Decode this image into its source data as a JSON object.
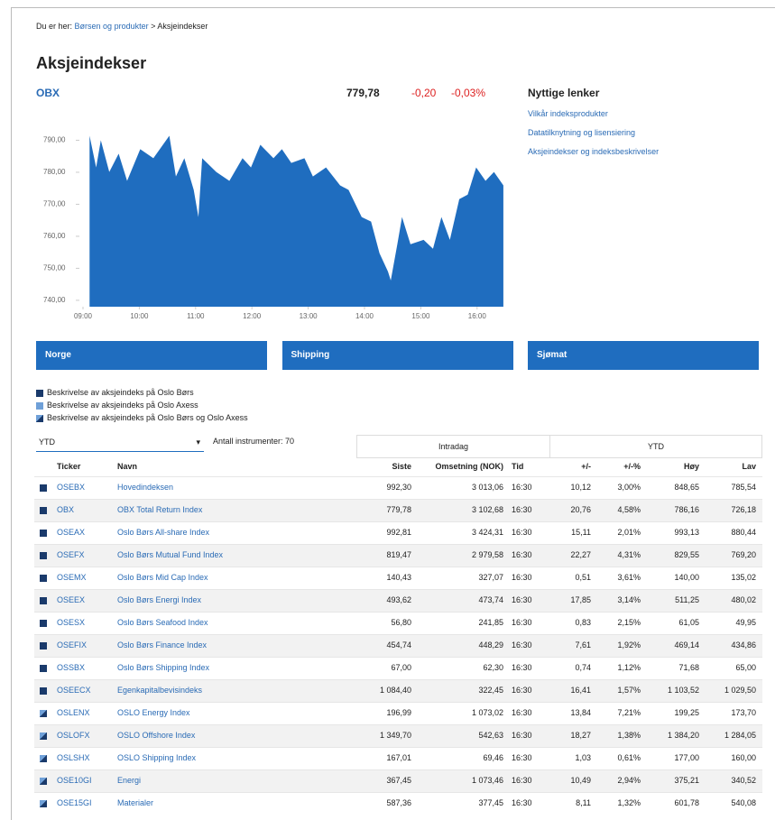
{
  "breadcrumb": {
    "label": "Du er her:",
    "items": [
      "Børsen og produkter",
      "Aksjeindekser"
    ]
  },
  "title": "Aksjeindekser",
  "quote": {
    "name": "OBX",
    "last": "779,78",
    "change": "-0,20",
    "change_pct": "-0,03%"
  },
  "chart_data": {
    "type": "area",
    "color": "#1f6dbf",
    "x": [
      "09:07",
      "09:14",
      "09:19",
      "09:28",
      "09:38",
      "09:47",
      "10:01",
      "10:15",
      "10:32",
      "10:39",
      "10:48",
      "10:58",
      "11:03",
      "11:07",
      "11:22",
      "11:36",
      "11:50",
      "11:59",
      "12:09",
      "12:23",
      "12:32",
      "12:42",
      "12:56",
      "13:05",
      "13:19",
      "13:34",
      "13:43",
      "13:57",
      "14:07",
      "14:16",
      "14:25",
      "14:28",
      "14:35",
      "14:40",
      "14:49",
      "15:03",
      "15:13",
      "15:22",
      "15:31",
      "15:41",
      "15:50",
      "15:59",
      "16:09",
      "16:18",
      "16:28"
    ],
    "values": [
      791.4,
      781.5,
      790,
      780.1,
      785.8,
      777.3,
      787.2,
      784.4,
      791.4,
      778.7,
      784.4,
      774.5,
      766,
      784.4,
      780.1,
      777.3,
      784.4,
      781.5,
      788.6,
      784.4,
      787.2,
      782.9,
      784.4,
      778.7,
      781.5,
      775.9,
      774.5,
      766,
      764.6,
      754.7,
      749,
      746.2,
      757.5,
      766,
      757.5,
      758.9,
      756.1,
      766,
      758.9,
      771.6,
      773,
      781.5,
      777.3,
      780.1,
      775.9
    ],
    "xlim": [
      "09:00",
      "16:30"
    ],
    "xticks": [
      "09:00",
      "10:00",
      "11:00",
      "12:00",
      "13:00",
      "14:00",
      "15:00",
      "16:00"
    ],
    "ylim": [
      738,
      800
    ],
    "yticks": [
      {
        "value": 740,
        "label": "740,00"
      },
      {
        "value": 750,
        "label": "750,00"
      },
      {
        "value": 760,
        "label": "760,00"
      },
      {
        "value": 770,
        "label": "770,00"
      },
      {
        "value": 780,
        "label": "780,00"
      },
      {
        "value": 790,
        "label": "790,00"
      }
    ]
  },
  "links": {
    "title": "Nyttige lenker",
    "items": [
      "Vilkår indeksprodukter",
      "Datatilknytning og lisensiering",
      "Aksjeindekser og indeksbeskrivelser"
    ]
  },
  "buttons": [
    "Norge",
    "Shipping",
    "Sjømat"
  ],
  "legend": [
    {
      "text": "Beskrivelse av aksjeindeks på Oslo Børs",
      "color": "#1a3a6b"
    },
    {
      "text": "Beskrivelse av aksjeindeks på Oslo Axess",
      "color": "#6fa0d8"
    },
    {
      "text": "Beskrivelse av aksjeindeks på Oslo Børs og Oslo Axess",
      "color": "split"
    }
  ],
  "filter": {
    "select": "YTD",
    "count": "Antall instrumenter: 70"
  },
  "table": {
    "groups": [
      "Intradag",
      "YTD"
    ],
    "columns": [
      "Ticker",
      "Navn",
      "Siste",
      "Omsetning (NOK)",
      "Tid",
      "+/-",
      "+/-%",
      "Høy",
      "Lav"
    ],
    "rows": [
      {
        "legend": 0,
        "cells": [
          "OSEBX",
          "Hovedindeksen",
          "992,30",
          "3 013,06",
          "16:30",
          "10,12",
          "3,00%",
          "848,65",
          "785,54"
        ]
      },
      {
        "legend": 0,
        "cells": [
          "OBX",
          "OBX Total Return Index",
          "779,78",
          "3 102,68",
          "16:30",
          "20,76",
          "4,58%",
          "786,16",
          "726,18"
        ]
      },
      {
        "legend": 0,
        "cells": [
          "OSEAX",
          "Oslo Børs All-share Index",
          "992,81",
          "3 424,31",
          "16:30",
          "15,11",
          "2,01%",
          "993,13",
          "880,44"
        ]
      },
      {
        "legend": 0,
        "cells": [
          "OSEFX",
          "Oslo Børs Mutual Fund Index",
          "819,47",
          "2 979,58",
          "16:30",
          "22,27",
          "4,31%",
          "829,55",
          "769,20"
        ]
      },
      {
        "legend": 0,
        "cells": [
          "OSEMX",
          "Oslo Børs Mid Cap Index",
          "140,43",
          "327,07",
          "16:30",
          "0,51",
          "3,61%",
          "140,00",
          "135,02"
        ]
      },
      {
        "legend": 0,
        "cells": [
          "OSEEX",
          "Oslo Børs Energi Index",
          "493,62",
          "473,74",
          "16:30",
          "17,85",
          "3,14%",
          "511,25",
          "480,02"
        ]
      },
      {
        "legend": 0,
        "cells": [
          "OSESX",
          "Oslo Børs Seafood Index",
          "56,80",
          "241,85",
          "16:30",
          "0,83",
          "2,15%",
          "61,05",
          "49,95"
        ]
      },
      {
        "legend": 0,
        "cells": [
          "OSEFIX",
          "Oslo Børs Finance Index",
          "454,74",
          "448,29",
          "16:30",
          "7,61",
          "1,92%",
          "469,14",
          "434,86"
        ]
      },
      {
        "legend": 0,
        "cells": [
          "OSSBX",
          "Oslo Børs Shipping Index",
          "67,00",
          "62,30",
          "16:30",
          "0,74",
          "1,12%",
          "71,68",
          "65,00"
        ]
      },
      {
        "legend": 0,
        "cells": [
          "OSEECX",
          "Egenkapitalbevisindeks",
          "1 084,40",
          "322,45",
          "16:30",
          "16,41",
          "1,57%",
          "1 103,52",
          "1 029,50"
        ]
      },
      {
        "legend": 2,
        "cells": [
          "OSLENX",
          "OSLO Energy Index",
          "196,99",
          "1 073,02",
          "16:30",
          "13,84",
          "7,21%",
          "199,25",
          "173,70"
        ]
      },
      {
        "legend": 2,
        "cells": [
          "OSLOFX",
          "OSLO Offshore Index",
          "1 349,70",
          "542,63",
          "16:30",
          "18,27",
          "1,38%",
          "1 384,20",
          "1 284,05"
        ]
      },
      {
        "legend": 2,
        "cells": [
          "OSLSHX",
          "OSLO Shipping Index",
          "167,01",
          "69,46",
          "16:30",
          "1,03",
          "0,61%",
          "177,00",
          "160,00"
        ]
      },
      {
        "legend": 2,
        "cells": [
          "OSE10GI",
          "Energi",
          "367,45",
          "1 073,46",
          "16:30",
          "10,49",
          "2,94%",
          "375,21",
          "340,52"
        ]
      },
      {
        "legend": 2,
        "cells": [
          "OSE15GI",
          "Materialer",
          "587,36",
          "377,45",
          "16:30",
          "8,11",
          "1,32%",
          "601,78",
          "540,08"
        ]
      }
    ]
  }
}
